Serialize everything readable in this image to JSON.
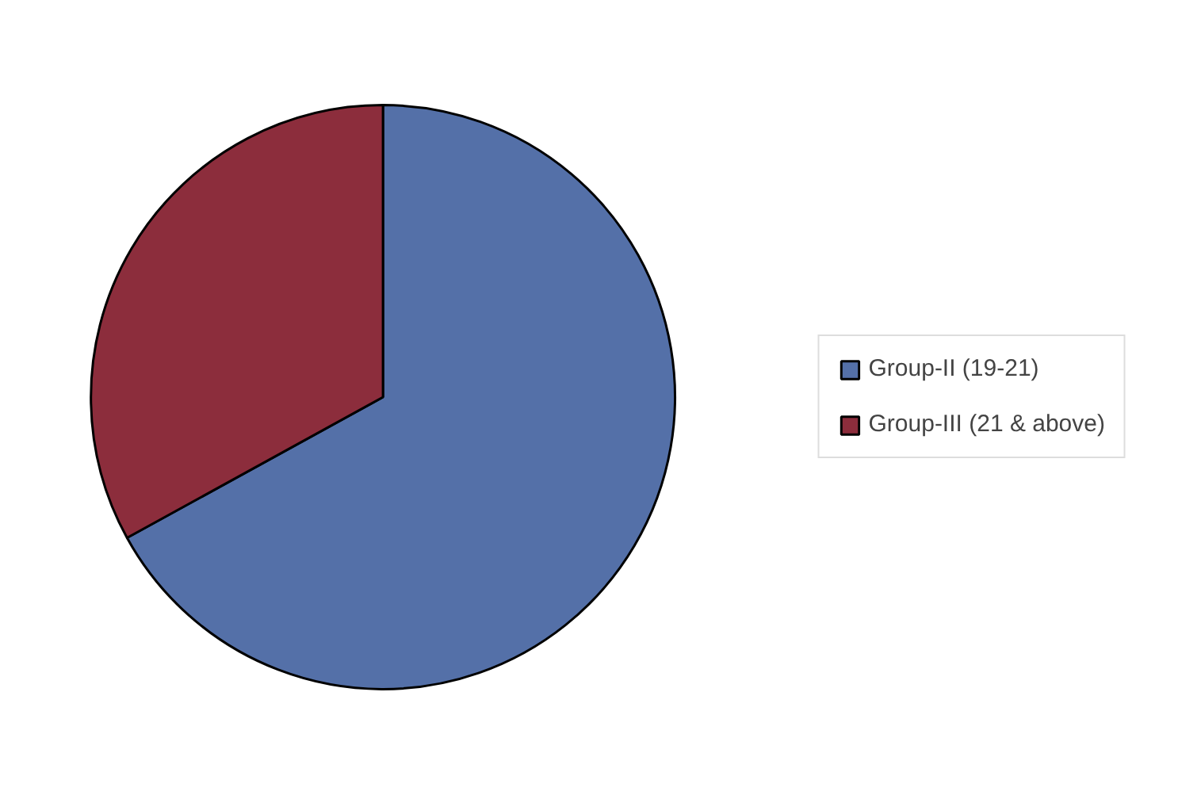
{
  "chart_data": {
    "type": "pie",
    "categories": [
      "Group-II (19-21)",
      "Group-III (21 & above)"
    ],
    "values": [
      67,
      33
    ],
    "colors": [
      "#5470a8",
      "#8c2d3c"
    ],
    "legend": "right"
  }
}
